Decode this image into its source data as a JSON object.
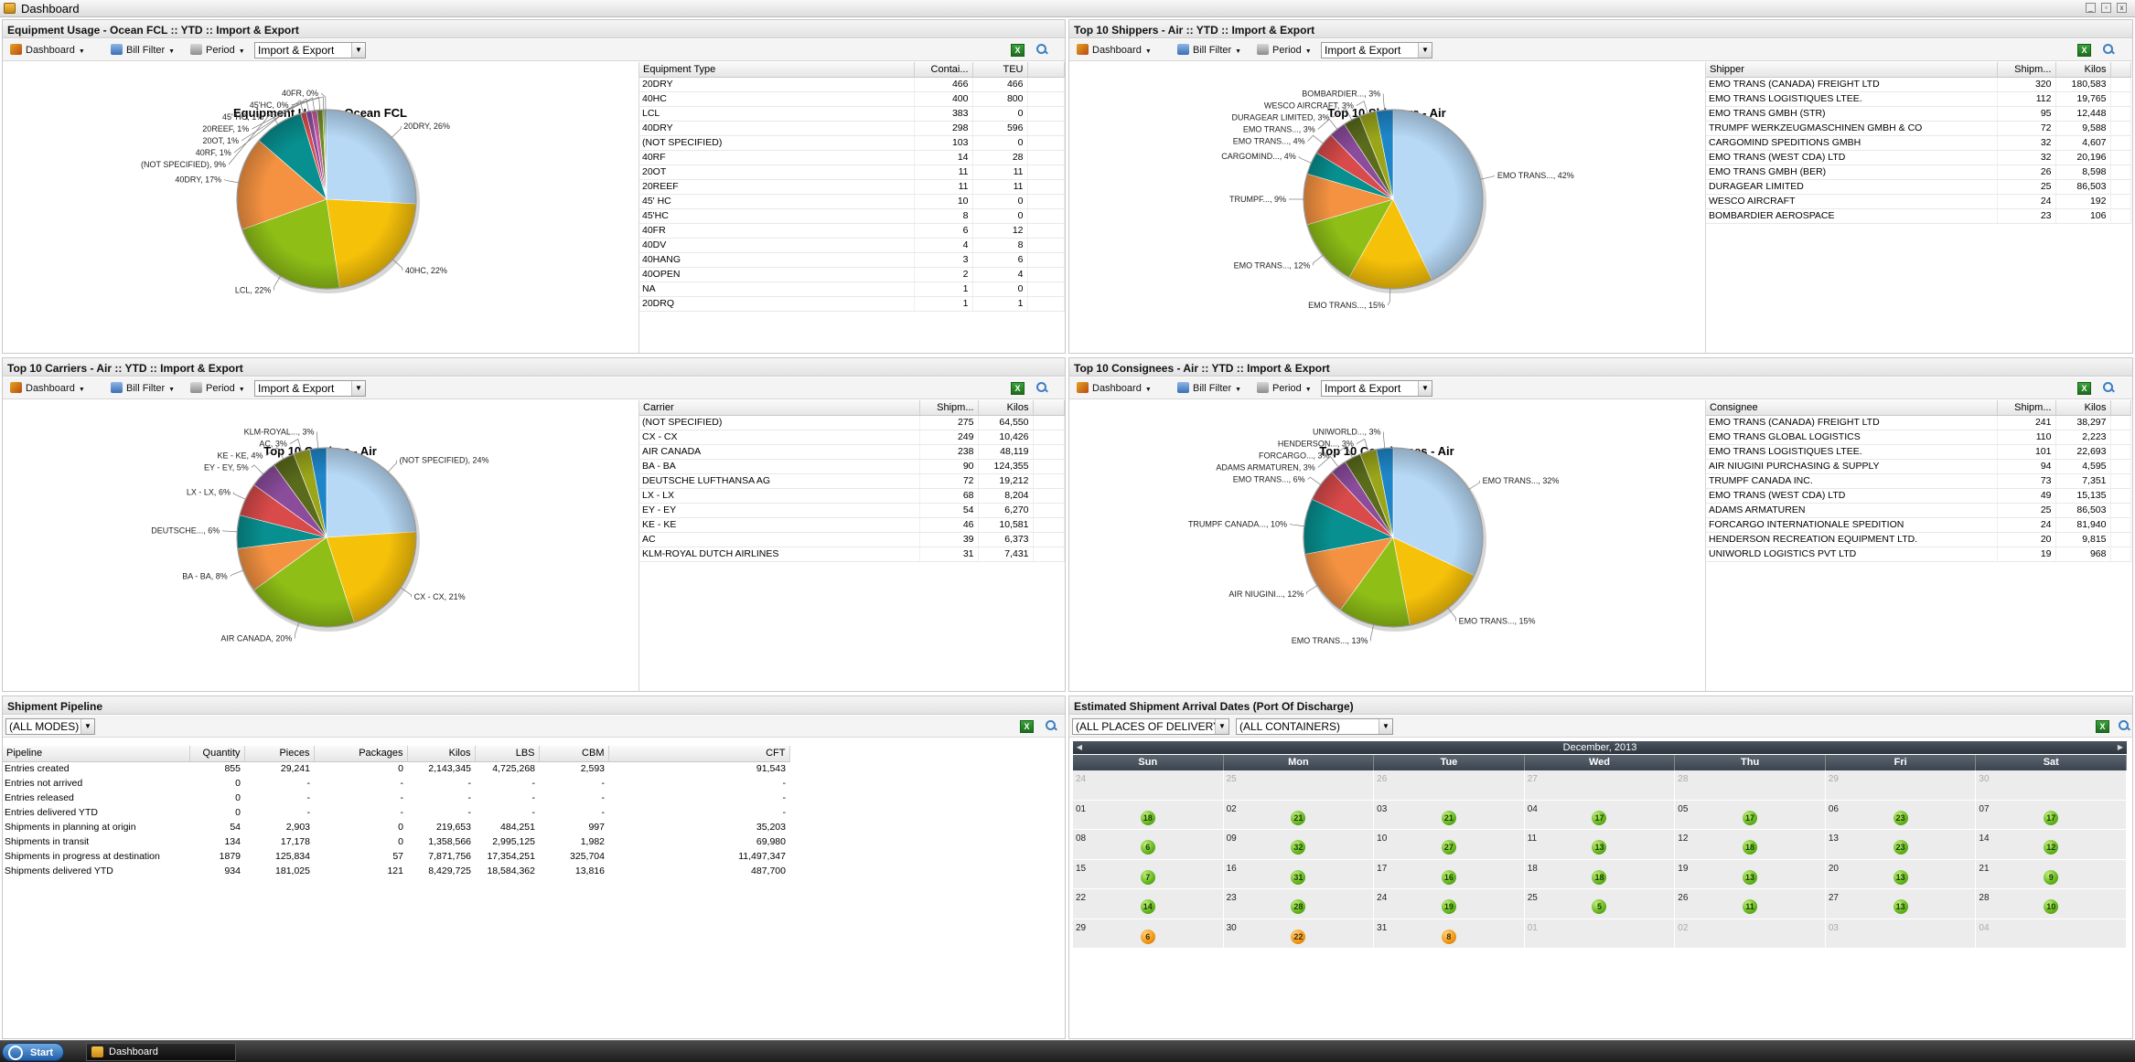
{
  "window": {
    "title": "Dashboard"
  },
  "toolbar_labels": {
    "dashboard": "Dashboard",
    "bill_filter": "Bill Filter",
    "period": "Period",
    "direction": "Import & Export",
    "excel": "X"
  },
  "colors": {
    "accent": "#3d7ec3",
    "badge_green": "#62b41c",
    "badge_orange": "#f09612"
  },
  "equipment_panel": {
    "header": "Equipment Usage - Ocean FCL :: YTD :: Import & Export",
    "grid": {
      "columns": [
        "Equipment Type",
        "Contai...",
        "TEU"
      ],
      "rows": [
        [
          "20DRY",
          "466",
          "466"
        ],
        [
          "40HC",
          "400",
          "800"
        ],
        [
          "LCL",
          "383",
          "0"
        ],
        [
          "40DRY",
          "298",
          "596"
        ],
        [
          "(NOT SPECIFIED)",
          "103",
          "0"
        ],
        [
          "40RF",
          "14",
          "28"
        ],
        [
          "20OT",
          "11",
          "11"
        ],
        [
          "20REEF",
          "11",
          "11"
        ],
        [
          "45' HC",
          "10",
          "0"
        ],
        [
          "45'HC",
          "8",
          "0"
        ],
        [
          "40FR",
          "6",
          "12"
        ],
        [
          "40DV",
          "4",
          "8"
        ],
        [
          "40HANG",
          "3",
          "6"
        ],
        [
          "40OPEN",
          "2",
          "4"
        ],
        [
          "NA",
          "1",
          "0"
        ],
        [
          "20DRQ",
          "1",
          "1"
        ]
      ]
    }
  },
  "shippers_panel": {
    "header": "Top 10 Shippers - Air :: YTD :: Import & Export",
    "grid": {
      "columns": [
        "Shipper",
        "Shipm...",
        "Kilos"
      ],
      "rows": [
        [
          "EMO TRANS (CANADA) FREIGHT LTD",
          "320",
          "180,583"
        ],
        [
          "EMO TRANS LOGISTIQUES LTEE.",
          "112",
          "19,765"
        ],
        [
          "EMO TRANS GMBH (STR)",
          "95",
          "12,448"
        ],
        [
          "TRUMPF WERKZEUGMASCHINEN GMBH & CO",
          "72",
          "9,588"
        ],
        [
          "CARGOMIND SPEDITIONS GMBH",
          "32",
          "4,607"
        ],
        [
          "EMO TRANS (WEST CDA) LTD",
          "32",
          "20,196"
        ],
        [
          "EMO TRANS GMBH (BER)",
          "26",
          "8,598"
        ],
        [
          "DURAGEAR LIMITED",
          "25",
          "86,503"
        ],
        [
          "WESCO AIRCRAFT",
          "24",
          "192"
        ],
        [
          "BOMBARDIER AEROSPACE",
          "23",
          "106"
        ]
      ]
    }
  },
  "carriers_panel": {
    "header": "Top 10 Carriers - Air :: YTD :: Import & Export",
    "grid": {
      "columns": [
        "Carrier",
        "Shipm...",
        "Kilos"
      ],
      "rows": [
        [
          "(NOT SPECIFIED)",
          "275",
          "64,550"
        ],
        [
          "CX - CX",
          "249",
          "10,426"
        ],
        [
          "AIR CANADA",
          "238",
          "48,119"
        ],
        [
          "BA - BA",
          "90",
          "124,355"
        ],
        [
          "DEUTSCHE LUFTHANSA AG",
          "72",
          "19,212"
        ],
        [
          "LX - LX",
          "68",
          "8,204"
        ],
        [
          "EY - EY",
          "54",
          "6,270"
        ],
        [
          "KE - KE",
          "46",
          "10,581"
        ],
        [
          "AC",
          "39",
          "6,373"
        ],
        [
          "KLM-ROYAL DUTCH AIRLINES",
          "31",
          "7,431"
        ]
      ]
    }
  },
  "consignees_panel": {
    "header": "Top 10 Consignees - Air :: YTD :: Import & Export",
    "grid": {
      "columns": [
        "Consignee",
        "Shipm...",
        "Kilos"
      ],
      "rows": [
        [
          "EMO TRANS (CANADA) FREIGHT LTD",
          "241",
          "38,297"
        ],
        [
          "EMO TRANS GLOBAL LOGISTICS",
          "110",
          "2,223"
        ],
        [
          "EMO TRANS LOGISTIQUES LTEE.",
          "101",
          "22,693"
        ],
        [
          "AIR NIUGINI PURCHASING & SUPPLY",
          "94",
          "4,595"
        ],
        [
          "TRUMPF CANADA INC.",
          "73",
          "7,351"
        ],
        [
          "EMO TRANS (WEST CDA) LTD",
          "49",
          "15,135"
        ],
        [
          "ADAMS ARMATUREN",
          "25",
          "86,503"
        ],
        [
          "FORCARGO INTERNATIONALE SPEDITION",
          "24",
          "81,940"
        ],
        [
          "HENDERSON RECREATION EQUIPMENT LTD.",
          "20",
          "9,815"
        ],
        [
          "UNIWORLD LOGISTICS PVT LTD",
          "19",
          "968"
        ]
      ]
    }
  },
  "chart_data": [
    {
      "type": "pie",
      "title": "Equipment Usage - Ocean FCL",
      "series": [
        {
          "values": [
            26,
            22,
            22,
            17,
            9,
            1,
            1,
            1,
            1,
            0,
            0
          ]
        }
      ],
      "categories": [
        "20DRY",
        "40HC",
        "LCL",
        "40DRY",
        "(NOT SPECIFIED)",
        "40RF",
        "20OT",
        "20REEF",
        "45' HC",
        "45'HC",
        "40FR"
      ],
      "labels": [
        "20DRY, 26%",
        "40HC, 22%",
        "LCL, 22%",
        "40DRY, 17%",
        "(NOT SPECIFIED), 9%",
        "40RF, 1%",
        "20OT, 1%",
        "20REEF, 1%",
        "45' HC, 1%",
        "45'HC, 0%",
        "40FR, 0%"
      ],
      "colors": [
        "#b7d9f6",
        "#f6c109",
        "#8fbf17",
        "#f49241",
        "#088f8f",
        "#d94a4a",
        "#8b4c9c",
        "#c45ca0",
        "#6d8a2c",
        "#b0b020",
        "#60a0c8"
      ]
    },
    {
      "type": "pie",
      "title": "Top 10 Shippers - Air",
      "series": [
        {
          "values": [
            42,
            15,
            12,
            9,
            4,
            4,
            3,
            3,
            3,
            3
          ]
        }
      ],
      "categories": [
        "EMO TRANS...",
        "EMO TRANS...",
        "EMO TRANS...",
        "TRUMPF...",
        "CARGOMIND...",
        "EMO TRANS...",
        "EMO TRANS...",
        "DURAGEAR LIMITED",
        "WESCO AIRCRAFT",
        "BOMBARDIER..."
      ],
      "labels": [
        "EMO TRANS..., 42%",
        "EMO TRANS..., 15%",
        "EMO TRANS..., 12%",
        "TRUMPF..., 9%",
        "CARGOMIND..., 4%",
        "EMO TRANS..., 4%",
        "EMO TRANS..., 3%",
        "DURAGEAR LIMITED, 3%",
        "WESCO AIRCRAFT, 3%",
        "BOMBARDIER..., 3%"
      ],
      "colors": [
        "#b7d9f6",
        "#f6c109",
        "#8fbf17",
        "#f49241",
        "#088f8f",
        "#d94a4a",
        "#8b4c9c",
        "#5a6b1c",
        "#9aa51a",
        "#1e86c8"
      ]
    },
    {
      "type": "pie",
      "title": "Top 10 Carriers - Air",
      "series": [
        {
          "values": [
            24,
            21,
            20,
            8,
            6,
            6,
            5,
            4,
            3,
            3
          ]
        }
      ],
      "categories": [
        "(NOT SPECIFIED)",
        "CX - CX",
        "AIR CANADA",
        "BA - BA",
        "DEUTSCHE...",
        "LX - LX",
        "EY - EY",
        "KE - KE",
        "AC",
        "KLM-ROYAL..."
      ],
      "labels": [
        "(NOT SPECIFIED), 24%",
        "CX - CX, 21%",
        "AIR CANADA, 20%",
        "BA - BA, 8%",
        "DEUTSCHE..., 6%",
        "LX - LX, 6%",
        "EY - EY, 5%",
        "KE - KE, 4%",
        "AC, 3%",
        "KLM-ROYAL..., 3%"
      ],
      "colors": [
        "#b7d9f6",
        "#f6c109",
        "#8fbf17",
        "#f49241",
        "#088f8f",
        "#d94a4a",
        "#8b4c9c",
        "#5a6b1c",
        "#9aa51a",
        "#1e86c8"
      ]
    },
    {
      "type": "pie",
      "title": "Top 10 Consignees - Air",
      "series": [
        {
          "values": [
            32,
            15,
            13,
            12,
            10,
            6,
            3,
            3,
            3,
            3
          ]
        }
      ],
      "categories": [
        "EMO TRANS...",
        "EMO TRANS...",
        "EMO TRANS...",
        "AIR NIUGINI...",
        "TRUMPF CANADA...",
        "EMO TRANS...",
        "ADAMS ARMATUREN",
        "FORCARGO...",
        "HENDERSON...",
        "UNIWORLD..."
      ],
      "labels": [
        "EMO TRANS..., 32%",
        "EMO TRANS..., 15%",
        "EMO TRANS..., 13%",
        "AIR NIUGINI..., 12%",
        "TRUMPF CANADA..., 10%",
        "EMO TRANS..., 6%",
        "ADAMS ARMATUREN, 3%",
        "FORCARGO..., 3%",
        "HENDERSON..., 3%",
        "UNIWORLD..., 3%"
      ],
      "colors": [
        "#b7d9f6",
        "#f6c109",
        "#8fbf17",
        "#f49241",
        "#088f8f",
        "#d94a4a",
        "#8b4c9c",
        "#5a6b1c",
        "#9aa51a",
        "#1e86c8"
      ]
    }
  ],
  "pipeline_panel": {
    "header": "Shipment Pipeline",
    "mode_select": "(ALL MODES)",
    "columns": [
      "Pipeline",
      "Quantity",
      "Pieces",
      "Packages",
      "Kilos",
      "LBS",
      "CBM",
      "CFT"
    ],
    "rows": [
      [
        "Entries created",
        "855",
        "29,241",
        "0",
        "2,143,345",
        "4,725,268",
        "2,593",
        "91,543"
      ],
      [
        "Entries not arrived",
        "0",
        "-",
        "-",
        "-",
        "-",
        "-",
        "-"
      ],
      [
        "Entries released",
        "0",
        "-",
        "-",
        "-",
        "-",
        "-",
        "-"
      ],
      [
        "Entries delivered YTD",
        "0",
        "-",
        "-",
        "-",
        "-",
        "-",
        "-"
      ],
      [
        "Shipments in planning at origin",
        "54",
        "2,903",
        "0",
        "219,653",
        "484,251",
        "997",
        "35,203"
      ],
      [
        "Shipments in transit",
        "134",
        "17,178",
        "0",
        "1,358,566",
        "2,995,125",
        "1,982",
        "69,980"
      ],
      [
        "Shipments in progress at destination",
        "1879",
        "125,834",
        "57",
        "7,871,756",
        "17,354,251",
        "325,704",
        "11,497,347"
      ],
      [
        "Shipments delivered YTD",
        "934",
        "181,025",
        "121",
        "8,429,725",
        "18,584,362",
        "13,816",
        "487,700"
      ]
    ]
  },
  "arrival_panel": {
    "header": "Estimated Shipment Arrival Dates (Port Of Discharge)",
    "place_select": "(ALL PLACES OF DELIVERY)",
    "container_select": "(ALL CONTAINERS)",
    "month": "December, 2013",
    "weekdays": [
      "Sun",
      "Mon",
      "Tue",
      "Wed",
      "Thu",
      "Fri",
      "Sat"
    ],
    "days": [
      {
        "d": "24",
        "other": true
      },
      {
        "d": "25",
        "other": true
      },
      {
        "d": "26",
        "other": true
      },
      {
        "d": "27",
        "other": true
      },
      {
        "d": "28",
        "other": true
      },
      {
        "d": "29",
        "other": true
      },
      {
        "d": "30",
        "other": true
      },
      {
        "d": "01",
        "c": "18"
      },
      {
        "d": "02",
        "c": "21"
      },
      {
        "d": "03",
        "c": "21"
      },
      {
        "d": "04",
        "c": "17"
      },
      {
        "d": "05",
        "c": "17"
      },
      {
        "d": "06",
        "c": "23"
      },
      {
        "d": "07",
        "c": "17"
      },
      {
        "d": "08",
        "c": "6"
      },
      {
        "d": "09",
        "c": "32"
      },
      {
        "d": "10",
        "c": "27"
      },
      {
        "d": "11",
        "c": "13"
      },
      {
        "d": "12",
        "c": "18"
      },
      {
        "d": "13",
        "c": "23"
      },
      {
        "d": "14",
        "c": "12"
      },
      {
        "d": "15",
        "c": "7"
      },
      {
        "d": "16",
        "c": "31"
      },
      {
        "d": "17",
        "c": "16"
      },
      {
        "d": "18",
        "c": "18"
      },
      {
        "d": "19",
        "c": "13"
      },
      {
        "d": "20",
        "c": "13"
      },
      {
        "d": "21",
        "c": "9"
      },
      {
        "d": "22",
        "c": "14"
      },
      {
        "d": "23",
        "c": "28"
      },
      {
        "d": "24",
        "c": "19"
      },
      {
        "d": "25",
        "c": "5"
      },
      {
        "d": "26",
        "c": "11"
      },
      {
        "d": "27",
        "c": "13"
      },
      {
        "d": "28",
        "c": "10"
      },
      {
        "d": "29",
        "c": "6",
        "orange": true
      },
      {
        "d": "30",
        "c": "22",
        "orange": true
      },
      {
        "d": "31",
        "c": "8",
        "orange": true
      },
      {
        "d": "01",
        "other": true
      },
      {
        "d": "02",
        "other": true
      },
      {
        "d": "03",
        "other": true
      },
      {
        "d": "04",
        "other": true
      }
    ]
  },
  "taskbar": {
    "start": "Start",
    "item": "Dashboard"
  }
}
